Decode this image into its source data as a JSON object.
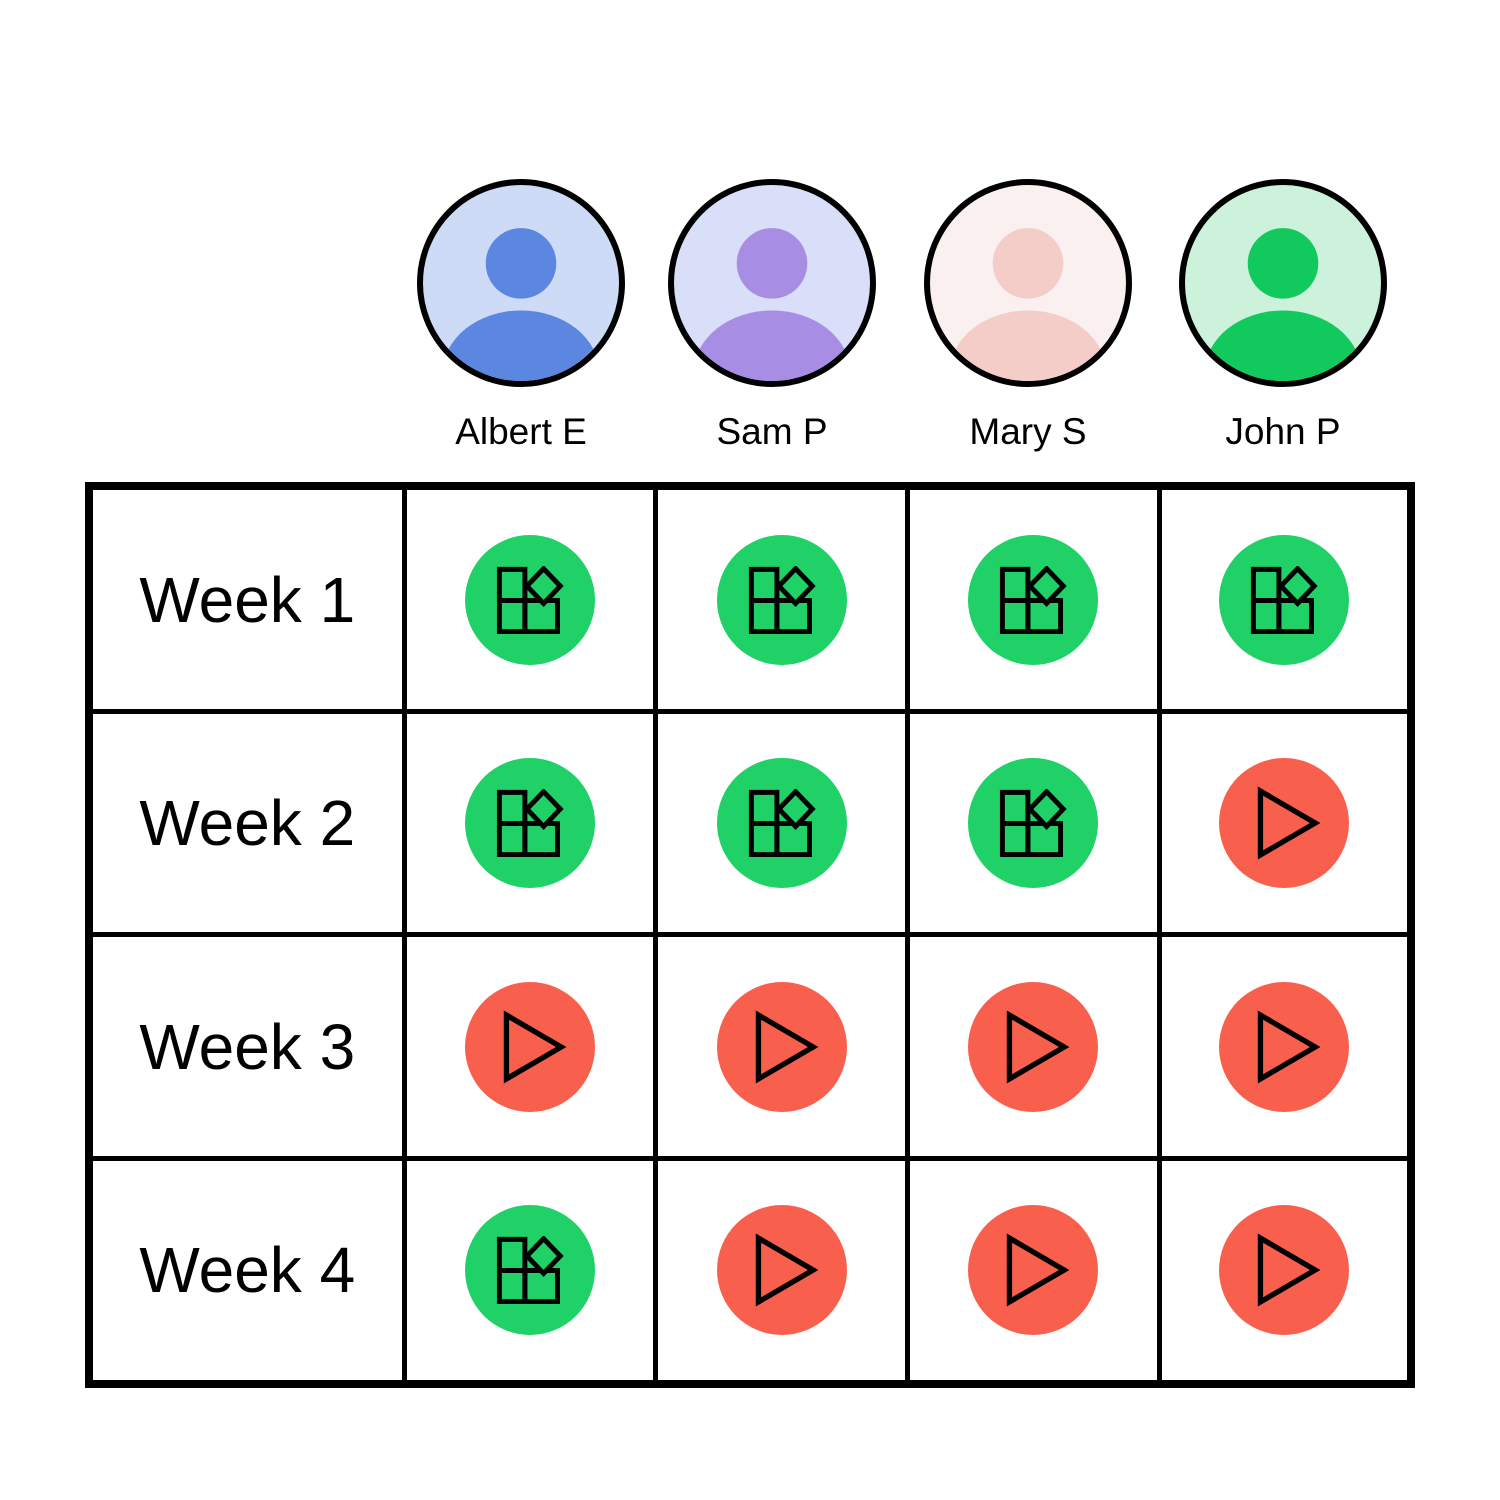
{
  "people": [
    {
      "name": "Albert E",
      "avatar_bg": "#cedbf7",
      "avatar_fg": "#5c87e0"
    },
    {
      "name": "Sam P",
      "avatar_bg": "#d9def9",
      "avatar_fg": "#a78de4"
    },
    {
      "name": "Mary S",
      "avatar_bg": "#faf0ef",
      "avatar_fg": "#f4ccc8"
    },
    {
      "name": "John P",
      "avatar_bg": "#ccf2db",
      "avatar_fg": "#11c95c"
    }
  ],
  "weeks": [
    {
      "label": "Week 1",
      "statuses": [
        "blocks",
        "blocks",
        "blocks",
        "blocks"
      ]
    },
    {
      "label": "Week 2",
      "statuses": [
        "blocks",
        "blocks",
        "blocks",
        "play"
      ]
    },
    {
      "label": "Week 3",
      "statuses": [
        "play",
        "play",
        "play",
        "play"
      ]
    },
    {
      "label": "Week 4",
      "statuses": [
        "blocks",
        "play",
        "play",
        "play"
      ]
    }
  ],
  "status_styles": {
    "blocks": {
      "color": "#1fd166",
      "icon": "blocks-icon"
    },
    "play": {
      "color": "#f8604d",
      "icon": "play-icon"
    }
  }
}
